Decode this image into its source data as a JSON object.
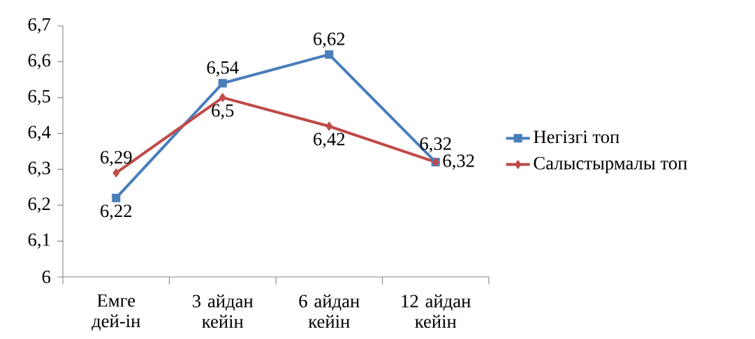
{
  "chart_data": {
    "type": "line",
    "categories": [
      "Емге дей-ін",
      "3 айдан кейін",
      "6 айдан кейін",
      "12 айдан кейін"
    ],
    "series": [
      {
        "name": "Негізгі топ",
        "color": "#4a7ebb",
        "marker": "square",
        "values": [
          6.22,
          6.54,
          6.62,
          6.32
        ],
        "value_labels": [
          "6,22",
          "6,54",
          "6,62",
          "6,32"
        ]
      },
      {
        "name": "Салыстырмалы топ",
        "color": "#be4b48",
        "marker": "diamond",
        "values": [
          6.29,
          6.5,
          6.42,
          6.32
        ],
        "value_labels": [
          "6,29",
          "6,5",
          "6,42",
          "6,32"
        ]
      }
    ],
    "ylim": [
      6,
      6.7
    ],
    "yticks": [
      {
        "value": 6,
        "label": "6"
      },
      {
        "value": 6.1,
        "label": "6,1"
      },
      {
        "value": 6.2,
        "label": "6,2"
      },
      {
        "value": 6.3,
        "label": "6,3"
      },
      {
        "value": 6.4,
        "label": "6,4"
      },
      {
        "value": 6.5,
        "label": "6,5"
      },
      {
        "value": 6.6,
        "label": "6,6"
      },
      {
        "value": 6.7,
        "label": "6,7"
      }
    ],
    "grid": false,
    "legend": "right"
  }
}
